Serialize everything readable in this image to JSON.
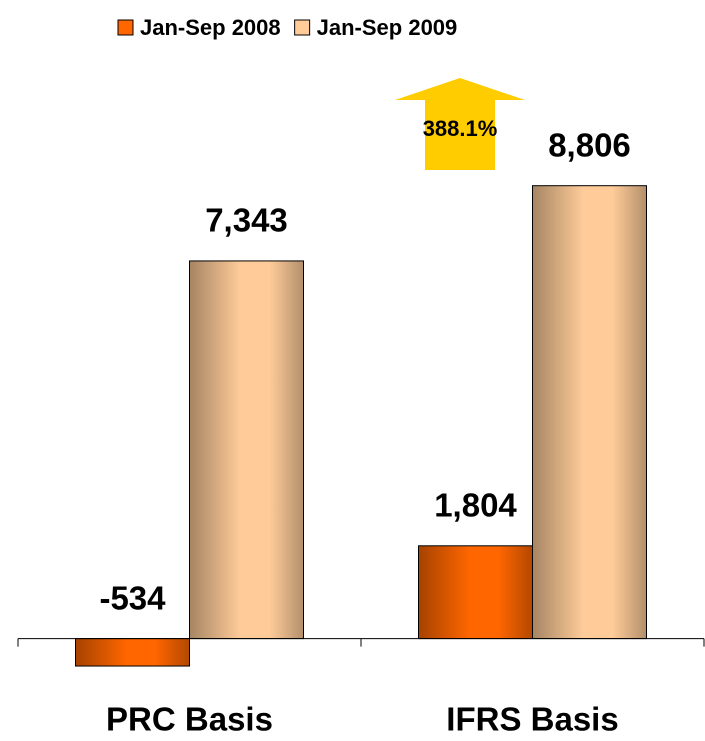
{
  "chart_data": {
    "type": "bar",
    "categories": [
      "PRC Basis",
      "IFRS Basis"
    ],
    "series": [
      {
        "name": "Jan-Sep 2008",
        "color": "#ff6600",
        "values": [
          -534,
          1804
        ],
        "value_labels": [
          "-534",
          "1,804"
        ]
      },
      {
        "name": "Jan-Sep 2009",
        "color": "#ffcc99",
        "values": [
          7343,
          8806
        ],
        "value_labels": [
          "7,343",
          "8,806"
        ]
      }
    ],
    "annotation": "388.1%",
    "ylim": [
      -1000,
      9500
    ],
    "legend": "top"
  }
}
